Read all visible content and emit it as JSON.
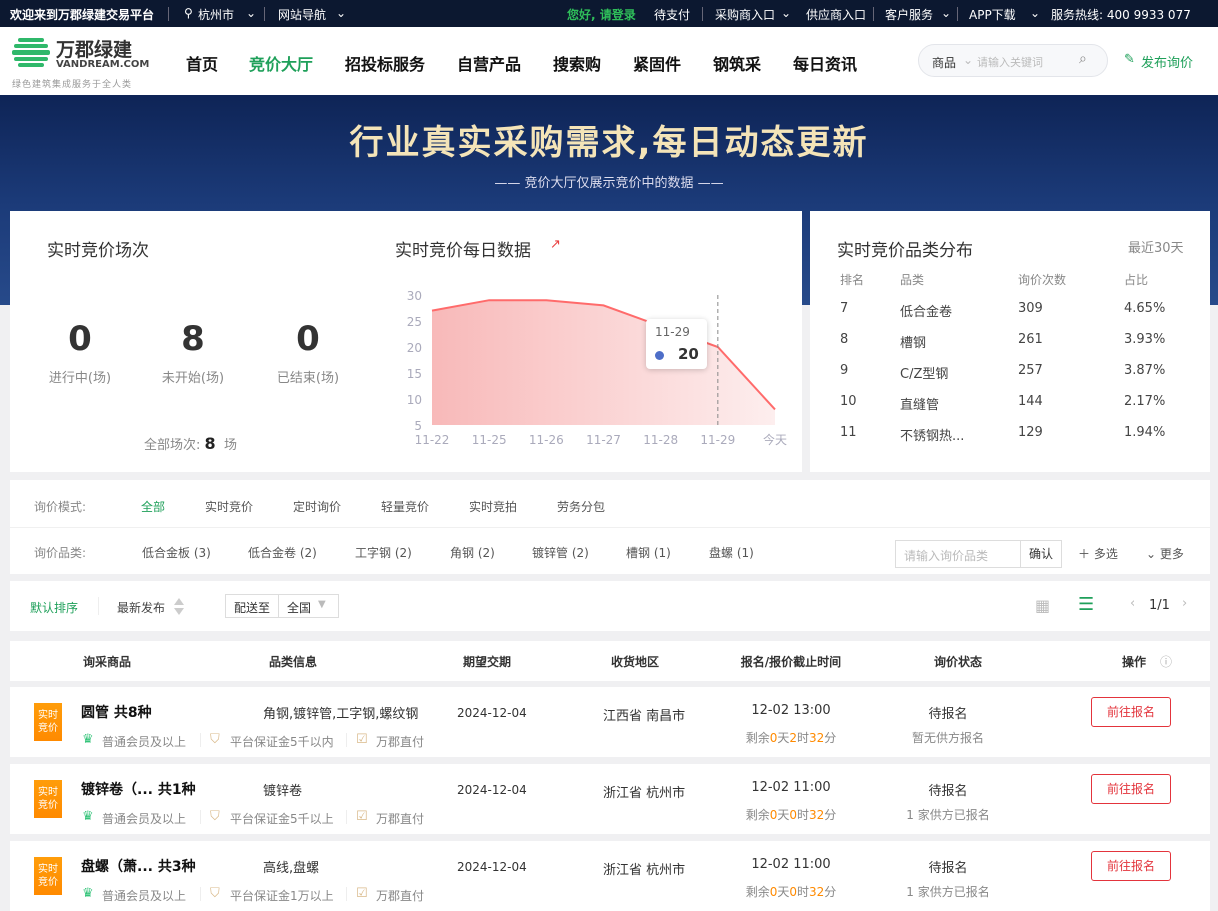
{
  "topbar": {
    "welcome": "欢迎来到万郡绿建交易平台",
    "city": "杭州市",
    "site_nav": "网站导航",
    "login": "您好, 请登录",
    "pending_pay": "待支付",
    "buyer_entry": "采购商入口",
    "supplier_entry": "供应商入口",
    "customer_service": "客户服务",
    "app_download": "APP下载",
    "hotline": "服务热线: 400 9933 077"
  },
  "logo": {
    "name": "万郡绿建",
    "domain": "VANDREAM.COM",
    "slogan": "绿色建筑集成服务于全人类"
  },
  "nav": {
    "items": [
      "首页",
      "竞价大厅",
      "招投标服务",
      "自营产品",
      "搜索购",
      "紧固件",
      "钢筑采",
      "每日资讯"
    ],
    "active": 1
  },
  "search": {
    "scope": "商品",
    "placeholder": "请输入关键词",
    "publish": "发布询价"
  },
  "banner": {
    "title": "行业真实采购需求,每日动态更新",
    "subtitle": "竞价大厅仅展示竞价中的数据"
  },
  "sessions": {
    "title": "实时竞价场次",
    "stats": [
      {
        "value": "0",
        "label": "进行中(场)"
      },
      {
        "value": "8",
        "label": "未开始(场)"
      },
      {
        "value": "0",
        "label": "已结束(场)"
      }
    ],
    "total_label": "全部场次:",
    "total": "8",
    "total_unit": "场"
  },
  "chart_data": {
    "type": "area",
    "title": "实时竞价每日数据",
    "categories": [
      "11-22",
      "11-25",
      "11-26",
      "11-27",
      "11-28",
      "11-29",
      "今天"
    ],
    "values": [
      27,
      29,
      29,
      28,
      24,
      20,
      8
    ],
    "ylim": [
      5,
      30
    ],
    "yticks": [
      "30",
      "25",
      "20",
      "15",
      "10",
      "5"
    ],
    "tooltip": {
      "label": "11-29",
      "value": "20"
    },
    "color": "#ff6b6b"
  },
  "distribution": {
    "title": "实时竞价品类分布",
    "period": "最近30天",
    "headers": [
      "排名",
      "品类",
      "询价次数",
      "占比"
    ],
    "rows": [
      [
        "7",
        "低合金卷",
        "309",
        "4.65%"
      ],
      [
        "8",
        "槽钢",
        "261",
        "3.93%"
      ],
      [
        "9",
        "C/Z型钢",
        "257",
        "3.87%"
      ],
      [
        "10",
        "直缝管",
        "144",
        "2.17%"
      ],
      [
        "11",
        "不锈钢热...",
        "129",
        "1.94%"
      ]
    ]
  },
  "filters": {
    "mode_label": "询价模式:",
    "modes": [
      "全部",
      "实时竞价",
      "定时询价",
      "轻量竞价",
      "实时竞拍",
      "劳务分包"
    ],
    "category_label": "询价品类:",
    "categories": [
      "低合金板 (3)",
      "低合金卷 (2)",
      "工字钢 (2)",
      "角钢 (2)",
      "镀锌管 (2)",
      "槽钢 (1)",
      "盘螺 (1)"
    ],
    "category_placeholder": "请输入询价品类",
    "confirm": "确认",
    "multi": "多选",
    "more": "更多"
  },
  "sort": {
    "default": "默认排序",
    "latest": "最新发布",
    "ship_to": "配送至",
    "region": "全国",
    "page": "1/1"
  },
  "table": {
    "headers": [
      "询采商品",
      "品类信息",
      "期望交期",
      "收货地区",
      "报名/报价截止时间",
      "询价状态",
      "操作"
    ],
    "rows": [
      {
        "tag": "实时竞价",
        "name": "圆管 共8种",
        "category": "角钢,镀锌管,工字钢,螺纹钢",
        "date": "2024-12-04",
        "region": "江西省 南昌市",
        "deadline": "12-02 13:00",
        "remain": [
          "剩余",
          "0",
          "天",
          "2",
          "时",
          "32",
          "分"
        ],
        "status": "待报名",
        "status_sub": "暂无供方报名",
        "action": "前往报名",
        "badges": [
          "普通会员及以上",
          "平台保证金5千以内",
          "万郡直付"
        ]
      },
      {
        "tag": "实时竞价",
        "name": "镀锌卷（... 共1种",
        "category": "镀锌卷",
        "date": "2024-12-04",
        "region": "浙江省 杭州市",
        "deadline": "12-02 11:00",
        "remain": [
          "剩余",
          "0",
          "天",
          "0",
          "时",
          "32",
          "分"
        ],
        "status": "待报名",
        "status_sub": "1 家供方已报名",
        "action": "前往报名",
        "badges": [
          "普通会员及以上",
          "平台保证金5千以上",
          "万郡直付"
        ]
      },
      {
        "tag": "实时竞价",
        "name": "盘螺（萧... 共3种",
        "category": "高线,盘螺",
        "date": "2024-12-04",
        "region": "浙江省 杭州市",
        "deadline": "12-02 11:00",
        "remain": [
          "剩余",
          "0",
          "天",
          "0",
          "时",
          "32",
          "分"
        ],
        "status": "待报名",
        "status_sub": "1 家供方已报名",
        "action": "前往报名",
        "badges": [
          "普通会员及以上",
          "平台保证金1万以上",
          "万郡直付"
        ]
      }
    ]
  }
}
